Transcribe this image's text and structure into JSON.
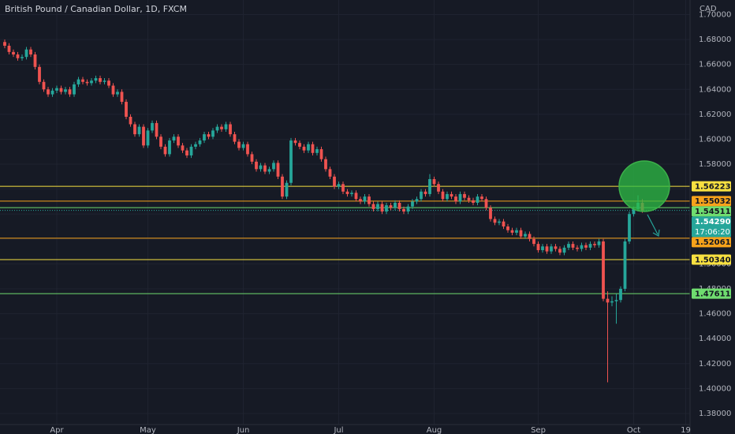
{
  "chart_data": {
    "type": "candlestick",
    "title": "British Pound / Canadian Dollar, 1D, FXCM",
    "currency": "CAD",
    "up_color": "#26a69a",
    "down_color": "#ef5350",
    "grid": true,
    "categories": [
      null,
      null,
      null,
      null,
      null,
      null,
      null,
      null,
      null,
      null,
      null,
      null,
      "Apr",
      null,
      null,
      null,
      null,
      null,
      null,
      null,
      null,
      null,
      null,
      null,
      null,
      null,
      null,
      null,
      null,
      null,
      null,
      null,
      null,
      "May",
      null,
      null,
      null,
      null,
      null,
      null,
      null,
      null,
      null,
      null,
      null,
      null,
      null,
      null,
      null,
      null,
      null,
      null,
      null,
      null,
      null,
      "Jun",
      null,
      null,
      null,
      null,
      null,
      null,
      null,
      null,
      null,
      null,
      null,
      null,
      null,
      null,
      null,
      null,
      null,
      null,
      null,
      null,
      null,
      "Jul",
      null,
      null,
      null,
      null,
      null,
      null,
      null,
      null,
      null,
      null,
      null,
      null,
      null,
      null,
      null,
      null,
      null,
      null,
      null,
      null,
      null,
      "Aug",
      null,
      null,
      null,
      null,
      null,
      null,
      null,
      null,
      null,
      null,
      null,
      null,
      null,
      null,
      null,
      null,
      null,
      null,
      null,
      null,
      null,
      null,
      null,
      "Sep",
      null,
      null,
      null,
      null,
      null,
      null,
      null,
      null,
      null,
      null,
      null,
      null,
      null,
      null,
      null,
      null,
      null,
      null,
      null,
      null,
      null,
      "Oct",
      null,
      null,
      null,
      null,
      null,
      null,
      null,
      null,
      null,
      null,
      null,
      "19"
    ],
    "open": [
      1.678,
      1.675,
      1.67,
      1.668,
      1.665,
      1.666,
      1.672,
      1.668,
      1.658,
      1.646,
      1.64,
      1.636,
      1.639,
      1.641,
      1.638,
      1.64,
      1.636,
      1.644,
      1.648,
      1.646,
      1.645,
      1.647,
      1.649,
      1.646,
      1.647,
      1.643,
      1.636,
      1.638,
      1.63,
      1.618,
      1.612,
      1.604,
      1.61,
      1.595,
      1.607,
      1.613,
      1.602,
      1.594,
      1.588,
      1.599,
      1.602,
      1.595,
      1.591,
      1.587,
      1.594,
      1.596,
      1.599,
      1.604,
      1.602,
      1.607,
      1.61,
      1.608,
      1.612,
      1.604,
      1.598,
      1.593,
      1.596,
      1.588,
      1.582,
      1.576,
      1.579,
      1.574,
      1.576,
      1.581,
      1.57,
      1.554,
      1.565,
      1.599,
      1.597,
      1.594,
      1.591,
      1.596,
      1.589,
      1.592,
      1.584,
      1.576,
      1.57,
      1.562,
      1.564,
      1.558,
      1.556,
      1.557,
      1.552,
      1.55,
      1.554,
      1.548,
      1.544,
      1.548,
      1.542,
      1.547,
      1.545,
      1.549,
      1.544,
      1.542,
      1.546,
      1.55,
      1.552,
      1.558,
      1.556,
      1.568,
      1.564,
      1.558,
      1.552,
      1.556,
      1.554,
      1.55,
      1.556,
      1.553,
      1.551,
      1.549,
      1.554,
      1.552,
      1.545,
      1.536,
      1.533,
      1.534,
      1.53,
      1.527,
      1.525,
      1.527,
      1.522,
      1.524,
      1.52,
      1.516,
      1.511,
      1.514,
      1.51,
      1.514,
      1.512,
      1.509,
      1.513,
      1.516,
      1.513,
      1.512,
      1.515,
      1.513,
      1.516,
      1.515,
      1.518,
      1.472,
      1.469,
      1.47,
      1.471,
      1.48,
      1.518,
      1.54,
      1.544,
      1.549,
      null,
      null,
      null,
      null,
      null,
      null,
      null,
      null,
      null,
      null
    ],
    "high": [
      1.68,
      1.677,
      1.672,
      1.67,
      1.668,
      1.674,
      1.674,
      1.67,
      1.66,
      1.648,
      1.642,
      1.641,
      1.643,
      1.643,
      1.642,
      1.642,
      1.646,
      1.65,
      1.65,
      1.648,
      1.649,
      1.651,
      1.651,
      1.649,
      1.649,
      1.645,
      1.64,
      1.64,
      1.632,
      1.62,
      1.614,
      1.612,
      1.612,
      1.609,
      1.615,
      1.615,
      1.604,
      1.596,
      1.601,
      1.604,
      1.604,
      1.597,
      1.593,
      1.596,
      1.598,
      1.601,
      1.606,
      1.606,
      1.609,
      1.612,
      1.612,
      1.614,
      1.614,
      1.606,
      1.6,
      1.598,
      1.598,
      1.59,
      1.584,
      1.581,
      1.581,
      1.578,
      1.583,
      1.583,
      1.572,
      1.567,
      1.601,
      1.601,
      1.599,
      1.596,
      1.598,
      1.598,
      1.594,
      1.594,
      1.586,
      1.578,
      1.572,
      1.566,
      1.566,
      1.56,
      1.559,
      1.559,
      1.554,
      1.556,
      1.556,
      1.55,
      1.55,
      1.55,
      1.549,
      1.549,
      1.551,
      1.551,
      1.546,
      1.548,
      1.552,
      1.554,
      1.56,
      1.56,
      1.572,
      1.57,
      1.566,
      1.56,
      1.558,
      1.558,
      1.556,
      1.558,
      1.558,
      1.555,
      1.553,
      1.556,
      1.556,
      1.554,
      1.547,
      1.538,
      1.536,
      1.536,
      1.532,
      1.529,
      1.529,
      1.529,
      1.526,
      1.526,
      1.522,
      1.518,
      1.516,
      1.516,
      1.516,
      1.516,
      1.514,
      1.515,
      1.518,
      1.518,
      1.515,
      1.517,
      1.517,
      1.518,
      1.518,
      1.52,
      1.52,
      1.478,
      1.474,
      1.476,
      1.482,
      1.52,
      1.542,
      1.546,
      1.555,
      1.552,
      null,
      null,
      null,
      null,
      null,
      null,
      null,
      null,
      null,
      null
    ],
    "low": [
      1.673,
      1.668,
      1.666,
      1.663,
      1.663,
      1.664,
      1.666,
      1.656,
      1.644,
      1.638,
      1.634,
      1.634,
      1.637,
      1.636,
      1.636,
      1.634,
      1.634,
      1.642,
      1.644,
      1.643,
      1.643,
      1.645,
      1.644,
      1.644,
      1.641,
      1.634,
      1.634,
      1.628,
      1.616,
      1.61,
      1.602,
      1.602,
      1.593,
      1.593,
      1.605,
      1.6,
      1.592,
      1.586,
      1.586,
      1.597,
      1.593,
      1.589,
      1.585,
      1.585,
      1.592,
      1.594,
      1.597,
      1.6,
      1.6,
      1.605,
      1.606,
      1.606,
      1.602,
      1.596,
      1.591,
      1.591,
      1.586,
      1.58,
      1.574,
      1.574,
      1.572,
      1.572,
      1.574,
      1.568,
      1.552,
      1.552,
      1.563,
      1.595,
      1.592,
      1.589,
      1.589,
      1.587,
      1.587,
      1.582,
      1.574,
      1.568,
      1.56,
      1.56,
      1.556,
      1.554,
      1.554,
      1.55,
      1.548,
      1.548,
      1.546,
      1.542,
      1.542,
      1.54,
      1.54,
      1.543,
      1.543,
      1.542,
      1.54,
      1.54,
      1.544,
      1.548,
      1.55,
      1.554,
      1.554,
      1.562,
      1.556,
      1.55,
      1.55,
      1.552,
      1.548,
      1.548,
      1.551,
      1.549,
      1.547,
      1.547,
      1.55,
      1.543,
      1.534,
      1.531,
      1.531,
      1.528,
      1.525,
      1.523,
      1.523,
      1.52,
      1.52,
      1.518,
      1.514,
      1.509,
      1.509,
      1.508,
      1.508,
      1.51,
      1.507,
      1.507,
      1.511,
      1.511,
      1.51,
      1.51,
      1.511,
      1.511,
      1.513,
      1.513,
      1.47,
      1.405,
      1.466,
      1.452,
      1.469,
      1.478,
      1.516,
      1.538,
      1.542,
      1.541,
      null,
      null,
      null,
      null,
      null,
      null,
      null,
      null,
      null,
      null
    ],
    "close": [
      1.675,
      1.67,
      1.668,
      1.665,
      1.666,
      1.672,
      1.668,
      1.658,
      1.646,
      1.64,
      1.636,
      1.639,
      1.641,
      1.638,
      1.64,
      1.636,
      1.644,
      1.648,
      1.646,
      1.645,
      1.647,
      1.649,
      1.646,
      1.647,
      1.643,
      1.636,
      1.638,
      1.63,
      1.618,
      1.612,
      1.604,
      1.61,
      1.595,
      1.607,
      1.613,
      1.602,
      1.594,
      1.588,
      1.599,
      1.602,
      1.595,
      1.591,
      1.587,
      1.594,
      1.596,
      1.599,
      1.604,
      1.602,
      1.607,
      1.61,
      1.608,
      1.612,
      1.604,
      1.598,
      1.593,
      1.596,
      1.588,
      1.582,
      1.576,
      1.579,
      1.574,
      1.576,
      1.581,
      1.57,
      1.554,
      1.565,
      1.599,
      1.597,
      1.594,
      1.591,
      1.596,
      1.589,
      1.592,
      1.584,
      1.576,
      1.57,
      1.562,
      1.564,
      1.558,
      1.556,
      1.557,
      1.552,
      1.55,
      1.554,
      1.548,
      1.544,
      1.548,
      1.542,
      1.547,
      1.545,
      1.549,
      1.544,
      1.542,
      1.546,
      1.55,
      1.552,
      1.558,
      1.556,
      1.568,
      1.564,
      1.558,
      1.552,
      1.556,
      1.554,
      1.55,
      1.556,
      1.553,
      1.551,
      1.549,
      1.554,
      1.552,
      1.545,
      1.536,
      1.533,
      1.534,
      1.53,
      1.527,
      1.525,
      1.527,
      1.522,
      1.524,
      1.52,
      1.516,
      1.511,
      1.514,
      1.51,
      1.514,
      1.512,
      1.509,
      1.513,
      1.516,
      1.513,
      1.512,
      1.515,
      1.513,
      1.516,
      1.515,
      1.518,
      1.472,
      1.469,
      1.47,
      1.471,
      1.48,
      1.518,
      1.54,
      1.544,
      1.549,
      1.5429,
      null,
      null,
      null,
      null,
      null,
      null,
      null,
      null,
      null,
      null
    ],
    "ylim": [
      1.3711,
      1.7117
    ],
    "yticks": [
      {
        "value": 1.38,
        "label": "1.38000"
      },
      {
        "value": 1.4,
        "label": "1.40000"
      },
      {
        "value": 1.42,
        "label": "1.42000"
      },
      {
        "value": 1.44,
        "label": "1.44000"
      },
      {
        "value": 1.46,
        "label": "1.46000"
      },
      {
        "value": 1.48,
        "label": "1.48000"
      },
      {
        "value": 1.5,
        "label": "1.50000"
      },
      {
        "value": 1.52,
        "label": "1.52000"
      },
      {
        "value": 1.54,
        "label": "1.54000"
      },
      {
        "value": 1.56,
        "label": "1.56000"
      },
      {
        "value": 1.58,
        "label": "1.58000"
      },
      {
        "value": 1.6,
        "label": "1.60000"
      },
      {
        "value": 1.62,
        "label": "1.62000"
      },
      {
        "value": 1.64,
        "label": "1.64000"
      },
      {
        "value": 1.66,
        "label": "1.66000"
      },
      {
        "value": 1.68,
        "label": "1.68000"
      },
      {
        "value": 1.7,
        "label": "1.70000"
      }
    ],
    "levels": [
      {
        "value": 1.56223,
        "label": "1.56223",
        "color": "#f7e041"
      },
      {
        "value": 1.55032,
        "label": "1.55032",
        "color": "#f7a21b"
      },
      {
        "value": 1.54511,
        "label": "1.54511",
        "color": "#6fdc6f"
      },
      {
        "value": 1.52061,
        "label": "1.52061",
        "color": "#f7a21b"
      },
      {
        "value": 1.5034,
        "label": "1.50340",
        "color": "#f7e041"
      },
      {
        "value": 1.47611,
        "label": "1.47611",
        "color": "#6fdc6f"
      }
    ],
    "last_price": {
      "value": 1.5429,
      "label": "1.54290",
      "color": "#26a69a"
    },
    "countdown": "17:06:20"
  }
}
